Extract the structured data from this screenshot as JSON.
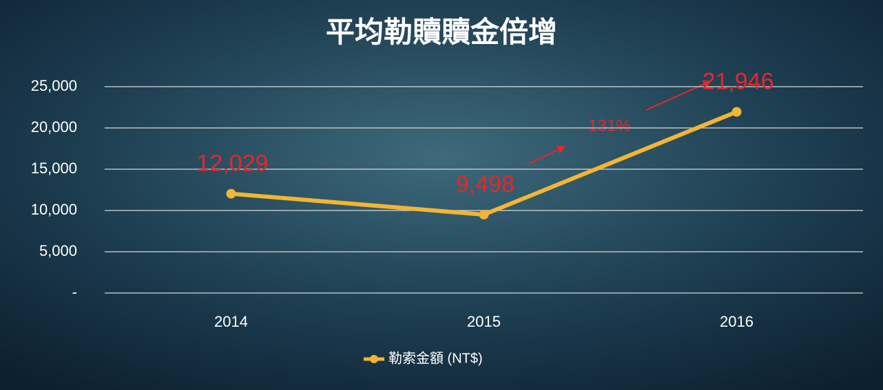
{
  "chart_data": {
    "type": "line",
    "title": "平均勒贖贖金倍增",
    "categories": [
      "2014",
      "2015",
      "2016"
    ],
    "series": [
      {
        "name": "勒索金額 (NT$)",
        "color": "#f2b534",
        "values": [
          12029,
          9498,
          21946
        ],
        "value_labels": [
          "12,029",
          "9,498",
          "21,946"
        ]
      }
    ],
    "ylim": [
      0,
      25000
    ],
    "yticks": [
      {
        "value": 0,
        "label": "-"
      },
      {
        "value": 5000,
        "label": "5,000"
      },
      {
        "value": 10000,
        "label": "10,000"
      },
      {
        "value": 15000,
        "label": "15,000"
      },
      {
        "value": 20000,
        "label": "20,000"
      },
      {
        "value": 25000,
        "label": "25,000"
      }
    ],
    "grid": true,
    "annotation": "131%"
  }
}
